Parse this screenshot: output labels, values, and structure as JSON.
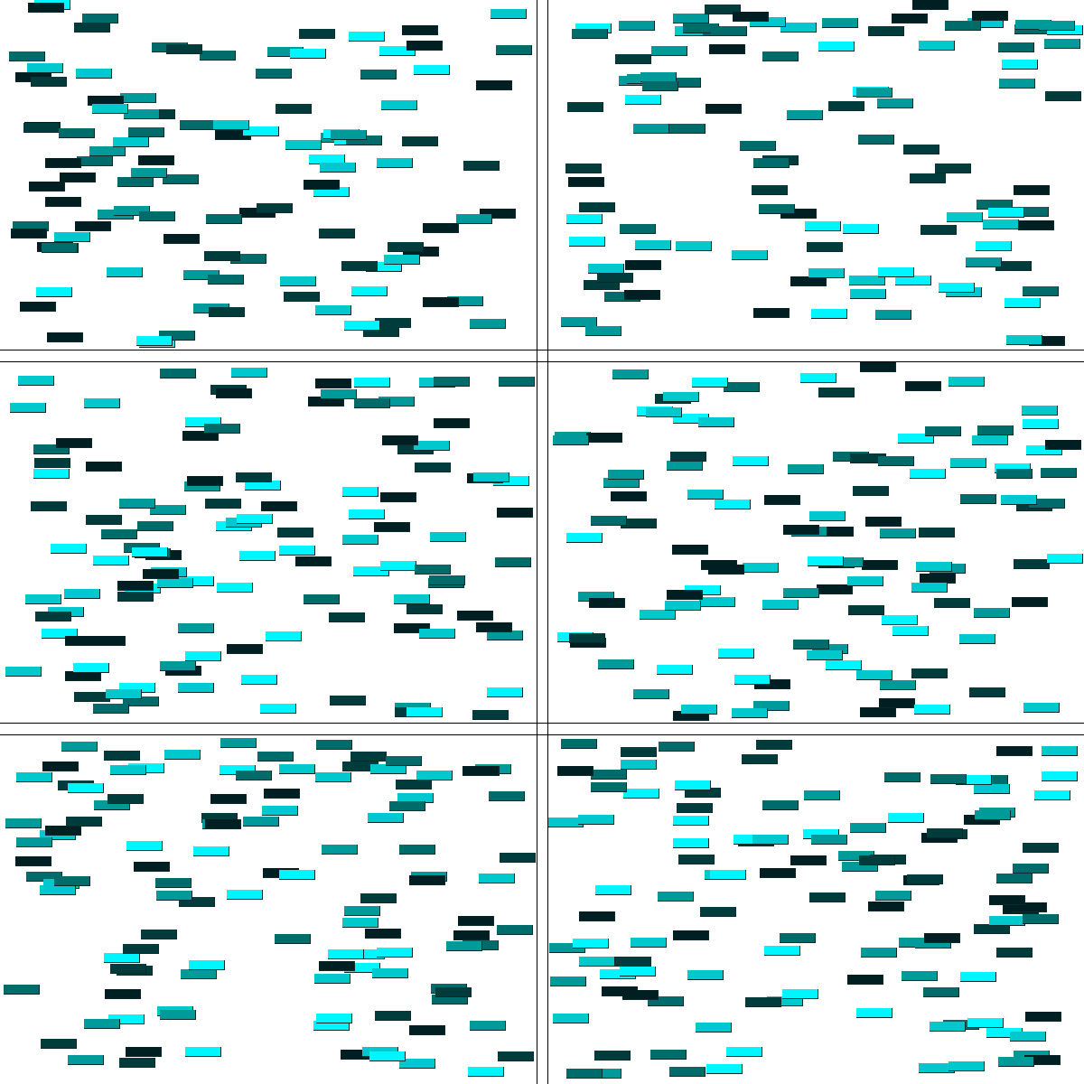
{
  "palette": {
    "c0": "#00f5ff",
    "c1": "#00c8cc",
    "c2": "#009a9a",
    "c3": "#006b6b",
    "c4": "#003c3c",
    "c5": "#001f22"
  },
  "panels": [
    {
      "name": "panel-top-left",
      "seed": 11,
      "count": 110
    },
    {
      "name": "panel-top-right",
      "seed": 23,
      "count": 105
    },
    {
      "name": "panel-middle-left",
      "seed": 37,
      "count": 118
    },
    {
      "name": "panel-middle-right",
      "seed": 41,
      "count": 115
    },
    {
      "name": "panel-bottom-left",
      "seed": 53,
      "count": 112
    },
    {
      "name": "panel-bottom-right",
      "seed": 67,
      "count": 116
    }
  ]
}
